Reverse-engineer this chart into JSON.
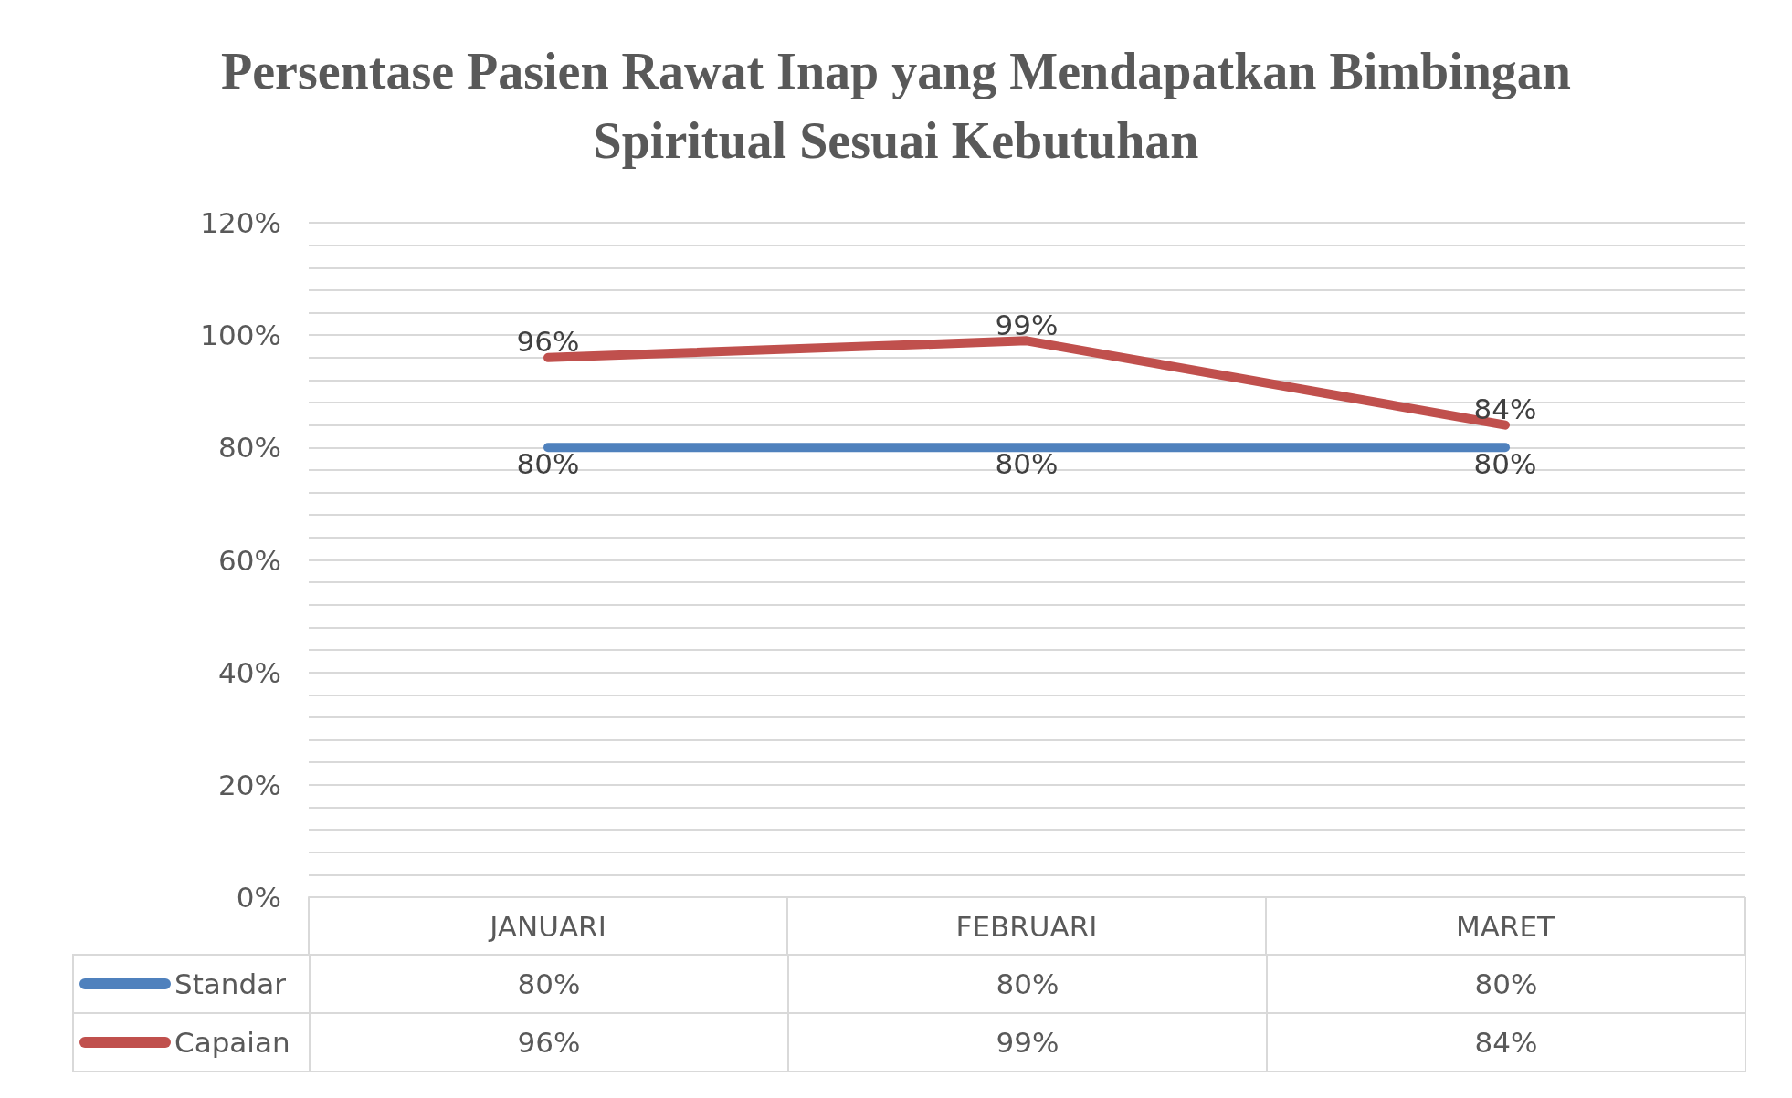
{
  "chart_data": {
    "type": "line",
    "title": "Persentase Pasien Rawat Inap yang Mendapatkan Bimbingan Spiritual Sesuai Kebutuhan",
    "categories": [
      "JANUARI",
      "FEBRUARI",
      "MARET"
    ],
    "series": [
      {
        "name": "Standar",
        "color": "#4f81bd",
        "values": [
          80,
          80,
          80
        ],
        "value_labels": [
          "80%",
          "80%",
          "80%"
        ]
      },
      {
        "name": "Capaian",
        "color": "#c0504d",
        "values": [
          96,
          99,
          84
        ],
        "value_labels": [
          "96%",
          "99%",
          "84%"
        ]
      }
    ],
    "ylim": [
      0,
      120
    ],
    "yticks": [
      {
        "value": 0,
        "label": "0%"
      },
      {
        "value": 4,
        "label": null
      },
      {
        "value": 8,
        "label": null
      },
      {
        "value": 12,
        "label": null
      },
      {
        "value": 16,
        "label": null
      },
      {
        "value": 20,
        "label": "20%"
      },
      {
        "value": 24,
        "label": null
      },
      {
        "value": 28,
        "label": null
      },
      {
        "value": 32,
        "label": null
      },
      {
        "value": 36,
        "label": null
      },
      {
        "value": 40,
        "label": "40%"
      },
      {
        "value": 44,
        "label": null
      },
      {
        "value": 48,
        "label": null
      },
      {
        "value": 52,
        "label": null
      },
      {
        "value": 56,
        "label": null
      },
      {
        "value": 60,
        "label": "60%"
      },
      {
        "value": 64,
        "label": null
      },
      {
        "value": 68,
        "label": null
      },
      {
        "value": 72,
        "label": null
      },
      {
        "value": 76,
        "label": null
      },
      {
        "value": 80,
        "label": "80%"
      },
      {
        "value": 84,
        "label": null
      },
      {
        "value": 88,
        "label": null
      },
      {
        "value": 92,
        "label": null
      },
      {
        "value": 96,
        "label": null
      },
      {
        "value": 100,
        "label": "100%"
      },
      {
        "value": 104,
        "label": null
      },
      {
        "value": 108,
        "label": null
      },
      {
        "value": 112,
        "label": null
      },
      {
        "value": 116,
        "label": null
      },
      {
        "value": 120,
        "label": "120%"
      }
    ],
    "grid": "y",
    "legend": "bottom",
    "marker": "none",
    "line_style": "solid"
  }
}
